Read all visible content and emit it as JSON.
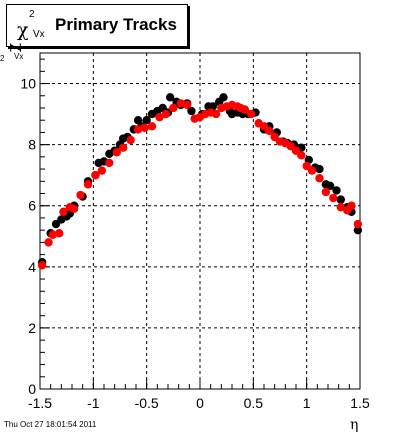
{
  "title": {
    "symbol": "χ",
    "superscript": "2",
    "subscript": "Vx",
    "text": "Primary Tracks"
  },
  "ylabel": {
    "symbol": "χ",
    "superscript": "2",
    "subscript": "Vx"
  },
  "xlabel": "η",
  "timestamp": "Thu Oct 27 18:01:54 2011",
  "colors": {
    "series_black": "#000000",
    "series_red": "#ff0000",
    "grid": "#000000"
  },
  "chart_data": {
    "type": "scatter",
    "xlim": [
      -1.5,
      1.5
    ],
    "ylim": [
      0,
      11
    ],
    "xticks": [
      "-1.5",
      "-1",
      "-0.5",
      "0",
      "0.5",
      "1",
      "1.5"
    ],
    "xtick_values": [
      -1.5,
      -1,
      -0.5,
      0,
      0.5,
      1,
      1.5
    ],
    "yticks": [
      "0",
      "2",
      "4",
      "6",
      "8",
      "10"
    ],
    "ytick_values": [
      0,
      2,
      4,
      6,
      8,
      10
    ],
    "grid": true,
    "series": [
      {
        "color": "#000000",
        "points": [
          [
            -1.48,
            4.15
          ],
          [
            -1.4,
            5.1
          ],
          [
            -1.35,
            5.4
          ],
          [
            -1.3,
            5.55
          ],
          [
            -1.25,
            5.65
          ],
          [
            -1.22,
            5.75
          ],
          [
            -1.18,
            6.0
          ],
          [
            -1.1,
            6.3
          ],
          [
            -1.05,
            6.8
          ],
          [
            -0.98,
            7.0
          ],
          [
            -0.95,
            7.4
          ],
          [
            -0.9,
            7.45
          ],
          [
            -0.85,
            7.7
          ],
          [
            -0.8,
            7.8
          ],
          [
            -0.75,
            8.0
          ],
          [
            -0.72,
            8.2
          ],
          [
            -0.68,
            8.25
          ],
          [
            -0.62,
            8.5
          ],
          [
            -0.58,
            8.8
          ],
          [
            -0.55,
            8.6
          ],
          [
            -0.5,
            8.8
          ],
          [
            -0.45,
            9.0
          ],
          [
            -0.4,
            9.1
          ],
          [
            -0.35,
            9.2
          ],
          [
            -0.3,
            9.05
          ],
          [
            -0.28,
            9.55
          ],
          [
            -0.22,
            9.4
          ],
          [
            -0.18,
            9.3
          ],
          [
            -0.12,
            9.35
          ],
          [
            -0.08,
            9.1
          ],
          [
            0.02,
            9.0
          ],
          [
            0.08,
            9.25
          ],
          [
            0.12,
            9.25
          ],
          [
            0.18,
            9.4
          ],
          [
            0.22,
            9.55
          ],
          [
            0.28,
            9.1
          ],
          [
            0.3,
            9.0
          ],
          [
            0.35,
            9.05
          ],
          [
            0.4,
            9.0
          ],
          [
            0.45,
            9.0
          ],
          [
            0.52,
            9.05
          ],
          [
            0.6,
            8.5
          ],
          [
            0.65,
            8.6
          ],
          [
            0.72,
            8.4
          ],
          [
            0.78,
            8.1
          ],
          [
            0.82,
            8.05
          ],
          [
            0.88,
            8.0
          ],
          [
            0.95,
            7.9
          ],
          [
            1.02,
            7.5
          ],
          [
            1.08,
            7.25
          ],
          [
            1.12,
            7.2
          ],
          [
            1.18,
            6.7
          ],
          [
            1.22,
            6.65
          ],
          [
            1.28,
            6.5
          ],
          [
            1.32,
            6.2
          ],
          [
            1.38,
            5.95
          ],
          [
            1.42,
            5.8
          ],
          [
            1.48,
            5.2
          ]
        ]
      },
      {
        "color": "#ff0000",
        "points": [
          [
            -1.48,
            4.05
          ],
          [
            -1.42,
            4.8
          ],
          [
            -1.38,
            5.05
          ],
          [
            -1.32,
            5.1
          ],
          [
            -1.28,
            5.8
          ],
          [
            -1.22,
            5.95
          ],
          [
            -1.18,
            5.9
          ],
          [
            -1.12,
            6.35
          ],
          [
            -1.05,
            6.7
          ],
          [
            -0.98,
            7.0
          ],
          [
            -0.92,
            7.15
          ],
          [
            -0.85,
            7.4
          ],
          [
            -0.78,
            7.75
          ],
          [
            -0.72,
            7.9
          ],
          [
            -0.65,
            8.15
          ],
          [
            -0.58,
            8.5
          ],
          [
            -0.52,
            8.55
          ],
          [
            -0.45,
            8.6
          ],
          [
            -0.38,
            8.9
          ],
          [
            -0.32,
            9.0
          ],
          [
            -0.25,
            9.2
          ],
          [
            -0.18,
            9.35
          ],
          [
            -0.12,
            9.3
          ],
          [
            -0.05,
            8.85
          ],
          [
            0.0,
            8.9
          ],
          [
            0.05,
            9.0
          ],
          [
            0.1,
            9.05
          ],
          [
            0.15,
            9.0
          ],
          [
            0.2,
            9.2
          ],
          [
            0.25,
            9.25
          ],
          [
            0.3,
            9.3
          ],
          [
            0.35,
            9.25
          ],
          [
            0.38,
            9.2
          ],
          [
            0.42,
            9.15
          ],
          [
            0.48,
            9.0
          ],
          [
            0.55,
            8.7
          ],
          [
            0.6,
            8.6
          ],
          [
            0.65,
            8.45
          ],
          [
            0.7,
            8.25
          ],
          [
            0.75,
            8.1
          ],
          [
            0.8,
            8.05
          ],
          [
            0.85,
            7.95
          ],
          [
            0.9,
            7.8
          ],
          [
            0.95,
            7.65
          ],
          [
            1.0,
            7.3
          ],
          [
            1.05,
            7.15
          ],
          [
            1.12,
            6.9
          ],
          [
            1.18,
            6.45
          ],
          [
            1.25,
            6.25
          ],
          [
            1.32,
            5.95
          ],
          [
            1.38,
            5.85
          ],
          [
            1.42,
            6.0
          ],
          [
            1.48,
            5.4
          ]
        ]
      }
    ]
  }
}
